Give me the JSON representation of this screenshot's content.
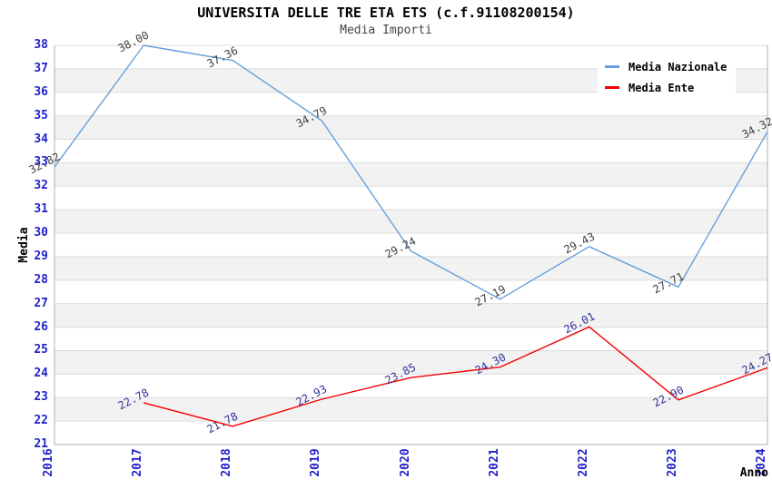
{
  "header": {
    "title": "UNIVERSITA DELLE TRE ETA ETS (c.f.91108200154)",
    "subtitle": "Media Importi"
  },
  "chart_data": {
    "type": "line",
    "title": "UNIVERSITA DELLE TRE ETA ETS (c.f.91108200154)",
    "subtitle": "Media Importi",
    "xlabel": "Anno",
    "ylabel": "Media",
    "ylim": [
      21,
      38
    ],
    "y_tick_step": 1,
    "categories": [
      "2016",
      "2017",
      "2018",
      "2019",
      "2020",
      "2021",
      "2022",
      "2023",
      "2024"
    ],
    "grid": "horizontal-bands",
    "legend_position": "top-right",
    "value_decimals": 2,
    "colors": {
      "band_fill": "#f2f2f2",
      "grid_line": "#dcdcdc",
      "axis_line": "#b0b0b0",
      "tick_label": "#2222cc"
    },
    "series": [
      {
        "name": "Media Nazionale",
        "color": "#66a0dc",
        "label_color": "#3f3f3f",
        "x": [
          2016,
          2017,
          2018,
          2019,
          2020,
          2021,
          2022,
          2023,
          2024
        ],
        "values": [
          32.82,
          38.0,
          37.36,
          34.79,
          29.24,
          27.19,
          29.43,
          27.71,
          34.32
        ]
      },
      {
        "name": "Media Ente",
        "color": "#f40000",
        "label_color": "#333399",
        "x": [
          2017,
          2018,
          2019,
          2020,
          2021,
          2022,
          2023,
          2024
        ],
        "values": [
          22.78,
          21.78,
          22.93,
          23.85,
          24.3,
          26.01,
          22.9,
          24.27
        ]
      }
    ]
  }
}
